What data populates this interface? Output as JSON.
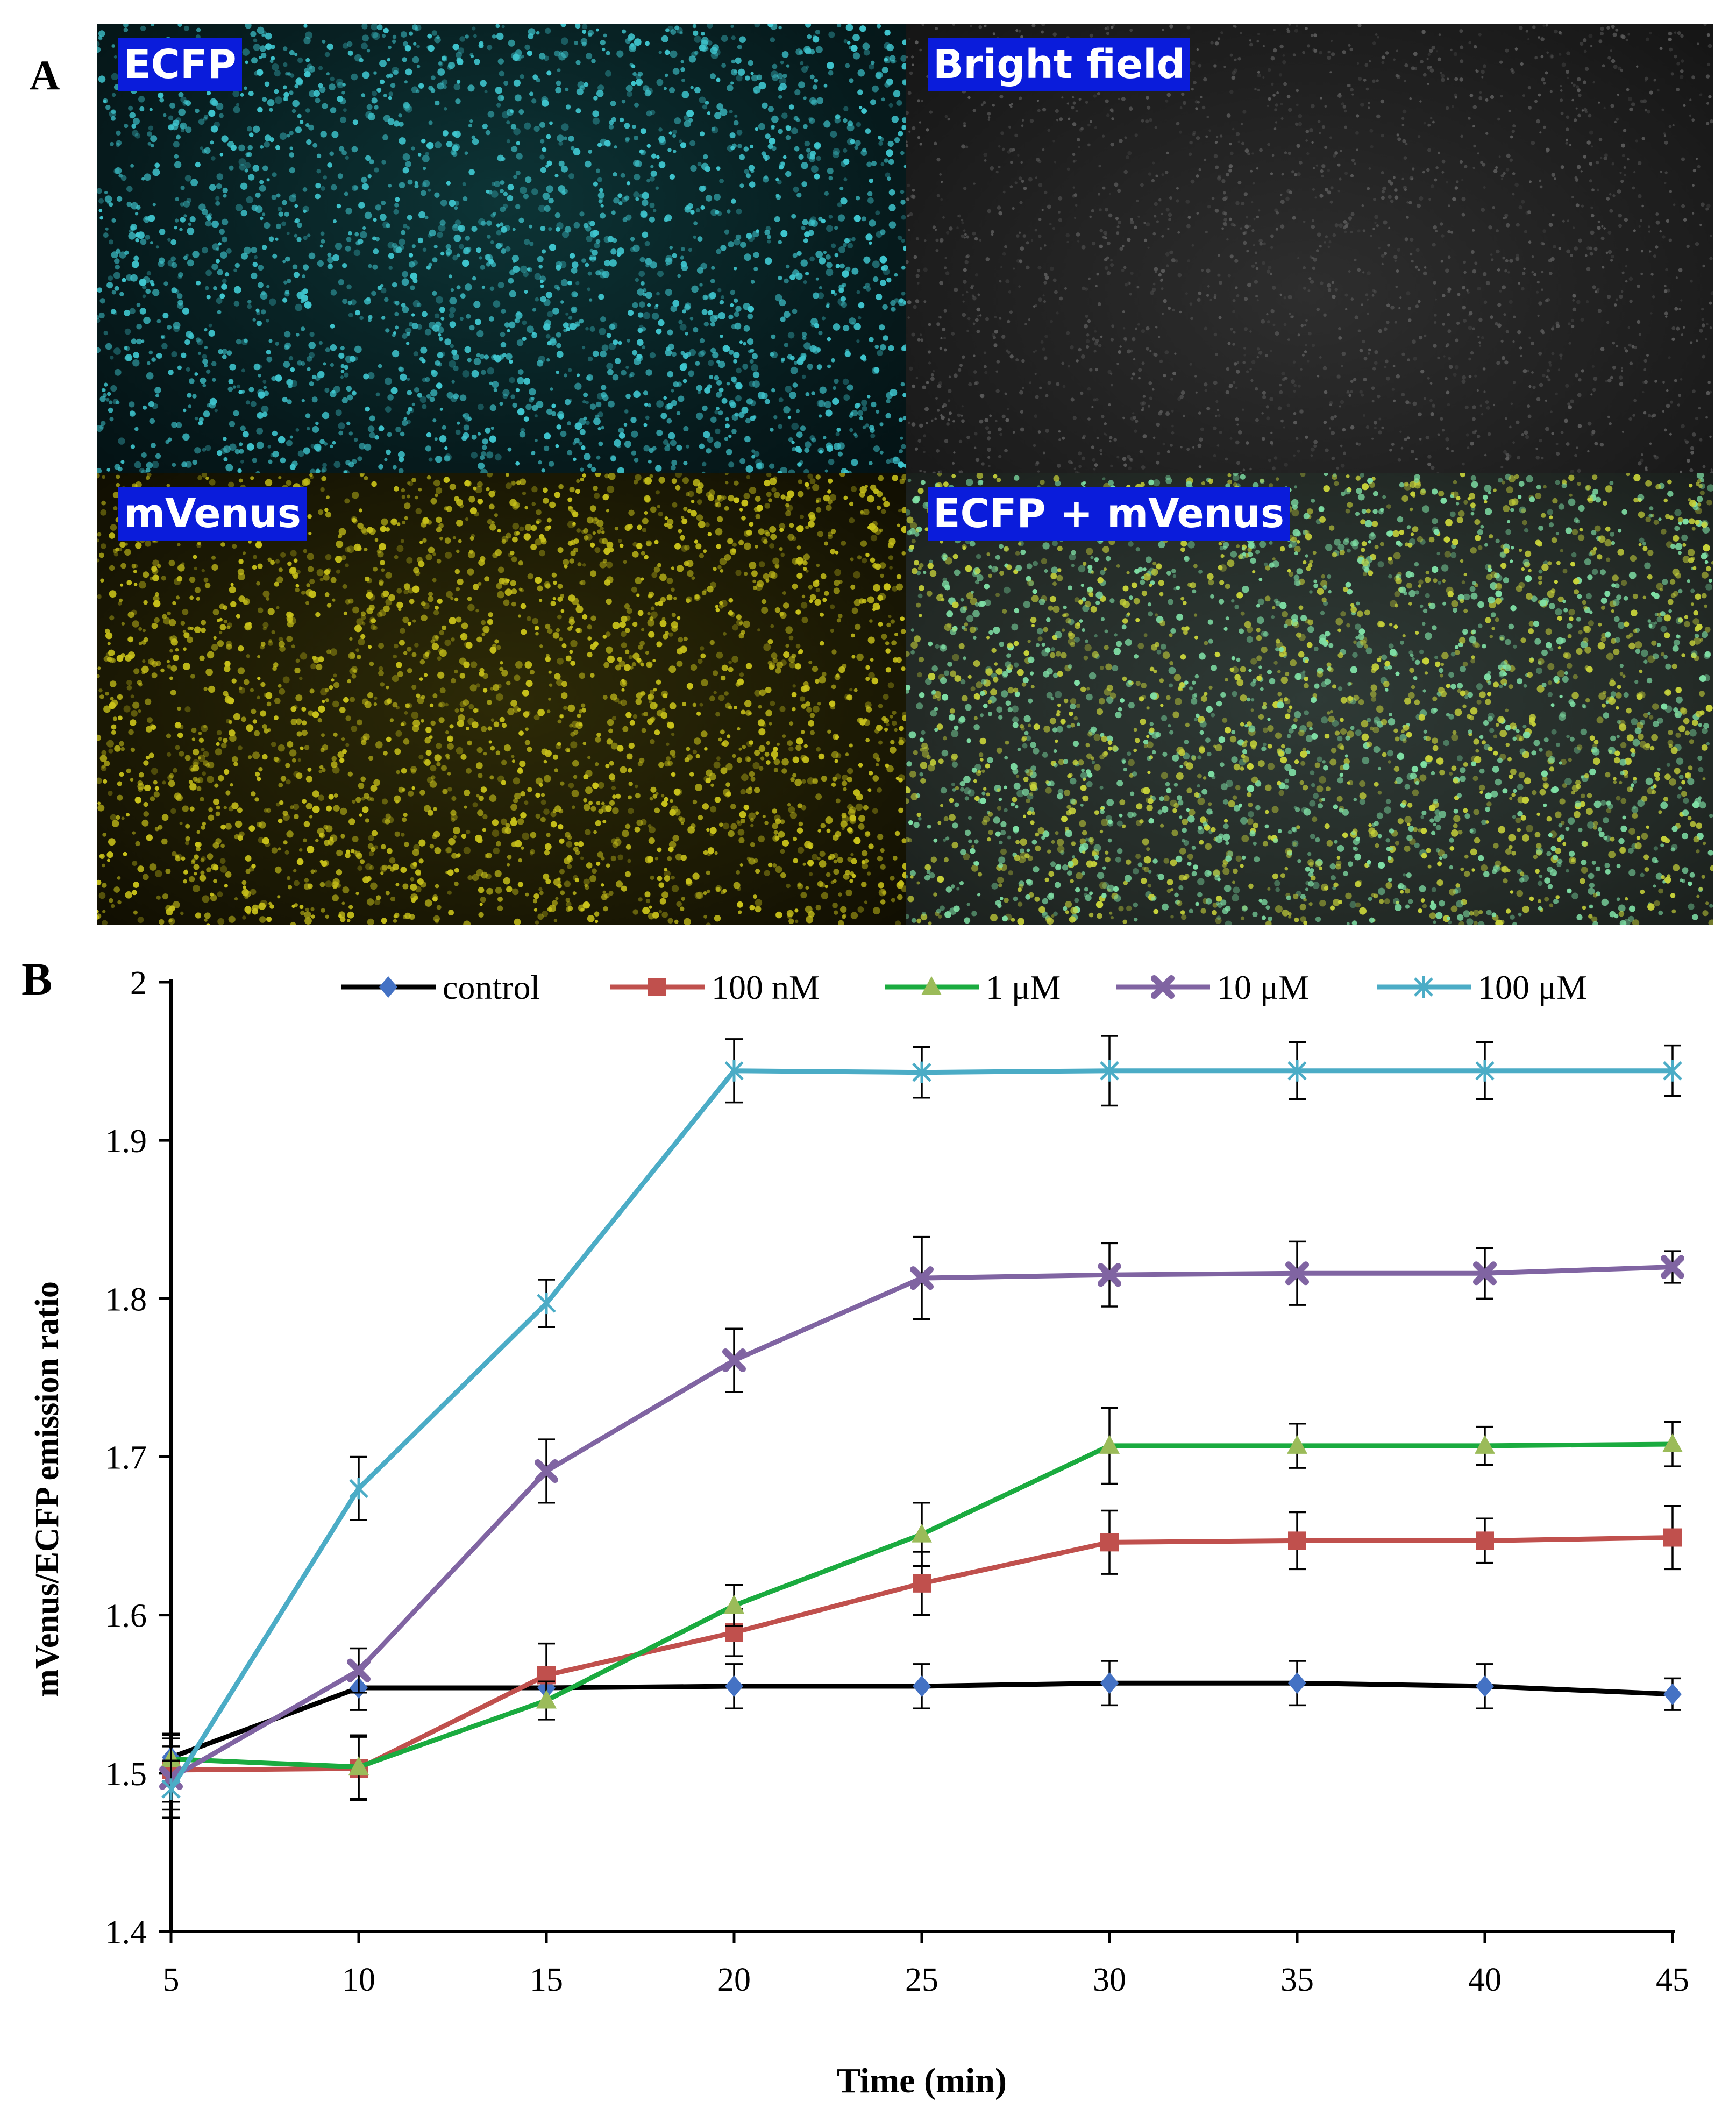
{
  "panelA": {
    "letter": "A",
    "labels": [
      "ECFP",
      "Bright field",
      "mVenus",
      "ECFP + mVenus"
    ],
    "colors": {
      "ecfp_dots": "#3fc6cf",
      "bright_dots": "#5a5a5a",
      "mvenus_dots": "#c9c21a",
      "merge_dots_a": "#7fe0a6",
      "merge_dots_b": "#c8d33a",
      "label_bg": "#0a1cdb"
    }
  },
  "panelB": {
    "letter": "B"
  },
  "chart_data": {
    "type": "line",
    "title": "",
    "xlabel": "Time (min)",
    "ylabel": "mVenus/ECFP emission ratio",
    "x": [
      5,
      10,
      15,
      20,
      25,
      30,
      35,
      40,
      45
    ],
    "xlim": [
      5,
      45
    ],
    "ylim": [
      1.4,
      2.0
    ],
    "xticks": [
      "5",
      "10",
      "15",
      "20",
      "25",
      "30",
      "35",
      "40",
      "45"
    ],
    "yticks": [
      "1.4",
      "1.5",
      "1.6",
      "1.7",
      "1.8",
      "1.9",
      "2"
    ],
    "grid": false,
    "legend": "top",
    "series": [
      {
        "name": "control",
        "color": "#000000",
        "marker_color": "#4472c4",
        "marker": "diamond",
        "values": [
          1.51,
          1.554,
          1.554,
          1.555,
          1.555,
          1.557,
          1.557,
          1.555,
          1.55
        ],
        "errors": [
          0.015,
          0.014,
          0.012,
          0.014,
          0.014,
          0.014,
          0.014,
          0.014,
          0.01
        ]
      },
      {
        "name": "100 nM",
        "color": "#c0504d",
        "marker_color": "#c0504d",
        "marker": "square",
        "values": [
          1.502,
          1.503,
          1.562,
          1.589,
          1.62,
          1.646,
          1.647,
          1.647,
          1.649
        ],
        "errors": [
          0.02,
          0.02,
          0.02,
          0.015,
          0.02,
          0.02,
          0.018,
          0.014,
          0.02
        ]
      },
      {
        "name": "1 μM",
        "color": "#1aab3f",
        "marker_color": "#9bbb59",
        "marker": "triangle",
        "values": [
          1.509,
          1.504,
          1.546,
          1.606,
          1.651,
          1.707,
          1.707,
          1.707,
          1.708
        ],
        "errors": [
          0.015,
          0.02,
          0.012,
          0.013,
          0.02,
          0.024,
          0.014,
          0.012,
          0.014
        ]
      },
      {
        "name": "10 μM",
        "color": "#8064a2",
        "marker_color": "#8064a2",
        "marker": "x",
        "values": [
          1.497,
          1.565,
          1.691,
          1.761,
          1.813,
          1.815,
          1.816,
          1.816,
          1.82
        ],
        "errors": [
          0.02,
          0.014,
          0.02,
          0.02,
          0.026,
          0.02,
          0.02,
          0.016,
          0.01
        ]
      },
      {
        "name": "100 μM",
        "color": "#4bacc6",
        "marker_color": "#4bacc6",
        "marker": "star",
        "values": [
          1.49,
          1.68,
          1.797,
          1.944,
          1.943,
          1.944,
          1.944,
          1.944,
          1.944
        ],
        "errors": [
          0.018,
          0.02,
          0.015,
          0.02,
          0.016,
          0.022,
          0.018,
          0.018,
          0.016
        ]
      }
    ]
  }
}
